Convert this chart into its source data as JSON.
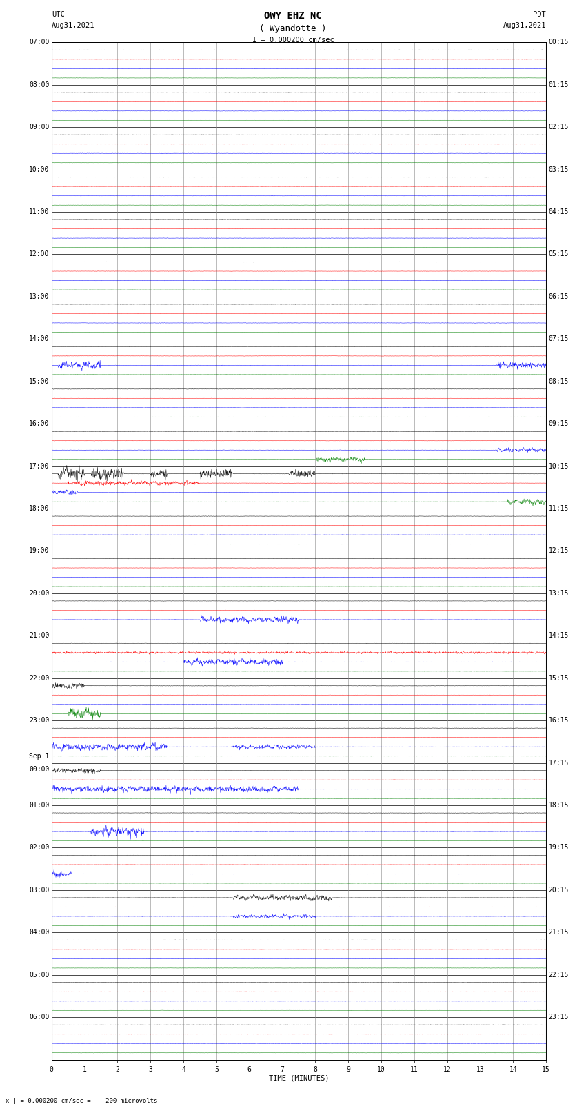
{
  "title_line1": "OWY EHZ NC",
  "title_line2": "( Wyandotte )",
  "scale_text": "I = 0.000200 cm/sec",
  "utc_label": "UTC",
  "utc_date": "Aug31,2021",
  "pdt_label": "PDT",
  "pdt_date": "Aug31,2021",
  "xlabel": "TIME (MINUTES)",
  "footer_text": "x | = 0.000200 cm/sec =    200 microvolts",
  "left_times": [
    "07:00",
    "08:00",
    "09:00",
    "10:00",
    "11:00",
    "12:00",
    "13:00",
    "14:00",
    "15:00",
    "16:00",
    "17:00",
    "18:00",
    "19:00",
    "20:00",
    "21:00",
    "22:00",
    "23:00",
    "Sep 1\n00:00",
    "01:00",
    "02:00",
    "03:00",
    "04:00",
    "05:00",
    "06:00"
  ],
  "right_times": [
    "00:15",
    "01:15",
    "02:15",
    "03:15",
    "04:15",
    "05:15",
    "06:15",
    "07:15",
    "08:15",
    "09:15",
    "10:15",
    "11:15",
    "12:15",
    "13:15",
    "14:15",
    "15:15",
    "16:15",
    "17:15",
    "18:15",
    "19:15",
    "20:15",
    "21:15",
    "22:15",
    "23:15"
  ],
  "n_rows": 24,
  "n_traces_per_row": 4,
  "trace_colors": [
    "black",
    "red",
    "blue",
    "green"
  ],
  "minutes_per_row": 15,
  "background_color": "white",
  "title_fontsize": 10,
  "label_fontsize": 7.5,
  "tick_fontsize": 7,
  "fig_width": 8.5,
  "fig_height": 16.13,
  "dpi": 100
}
